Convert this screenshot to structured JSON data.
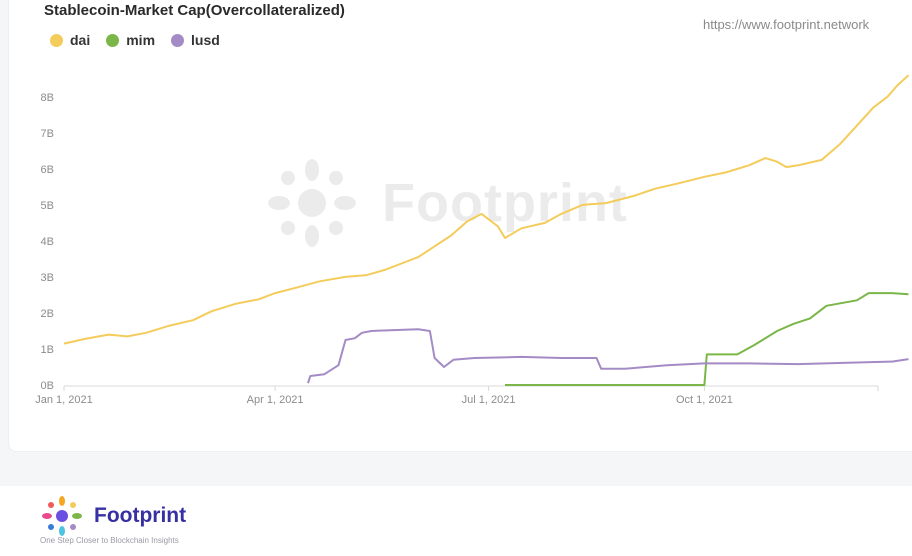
{
  "header": {
    "title": "Stablecoin-Market Cap(Overcollateralized)",
    "source_url": "https://www.footprint.network"
  },
  "watermark": {
    "text": "Footprint"
  },
  "footer": {
    "brand": "Footprint",
    "tagline": "One Step Closer to Blockchain Insights"
  },
  "chart_data": {
    "type": "line",
    "title": "Stablecoin-Market Cap(Overcollateralized)",
    "xlabel": "",
    "ylabel": "",
    "x_axis": {
      "type": "date",
      "min": "2021-01-01",
      "max": "2021-12-14",
      "ticks": [
        "2021-01-01",
        "2021-04-01",
        "2021-07-01",
        "2021-10-01"
      ],
      "tick_labels": [
        "Jan 1, 2021",
        "Apr 1, 2021",
        "Jul 1, 2021",
        "Oct 1, 2021"
      ]
    },
    "y_axis": {
      "min": 0,
      "max": 8.8,
      "ticks": [
        0,
        1,
        2,
        3,
        4,
        5,
        6,
        7,
        8
      ],
      "tick_labels": [
        "0B",
        "1B",
        "2B",
        "3B",
        "4B",
        "5B",
        "6B",
        "7B",
        "8B"
      ],
      "unit": "B"
    },
    "grid": false,
    "legend": "top-left",
    "series": [
      {
        "name": "dai",
        "color": "#f4cc5b",
        "points": [
          [
            "2021-01-01",
            1.15
          ],
          [
            "2021-01-10",
            1.28
          ],
          [
            "2021-01-20",
            1.4
          ],
          [
            "2021-01-28",
            1.35
          ],
          [
            "2021-02-05",
            1.45
          ],
          [
            "2021-02-15",
            1.65
          ],
          [
            "2021-02-25",
            1.8
          ],
          [
            "2021-03-05",
            2.05
          ],
          [
            "2021-03-15",
            2.25
          ],
          [
            "2021-03-25",
            2.38
          ],
          [
            "2021-04-01",
            2.55
          ],
          [
            "2021-04-10",
            2.7
          ],
          [
            "2021-04-20",
            2.88
          ],
          [
            "2021-05-01",
            3.0
          ],
          [
            "2021-05-10",
            3.05
          ],
          [
            "2021-05-18",
            3.2
          ],
          [
            "2021-05-26",
            3.4
          ],
          [
            "2021-06-01",
            3.55
          ],
          [
            "2021-06-08",
            3.85
          ],
          [
            "2021-06-15",
            4.15
          ],
          [
            "2021-06-22",
            4.55
          ],
          [
            "2021-06-28",
            4.75
          ],
          [
            "2021-07-05",
            4.4
          ],
          [
            "2021-07-08",
            4.08
          ],
          [
            "2021-07-15",
            4.35
          ],
          [
            "2021-07-25",
            4.5
          ],
          [
            "2021-08-01",
            4.75
          ],
          [
            "2021-08-10",
            5.0
          ],
          [
            "2021-08-20",
            5.05
          ],
          [
            "2021-09-01",
            5.25
          ],
          [
            "2021-09-10",
            5.45
          ],
          [
            "2021-09-20",
            5.6
          ],
          [
            "2021-10-01",
            5.78
          ],
          [
            "2021-10-10",
            5.9
          ],
          [
            "2021-10-20",
            6.1
          ],
          [
            "2021-10-27",
            6.3
          ],
          [
            "2021-11-01",
            6.2
          ],
          [
            "2021-11-05",
            6.05
          ],
          [
            "2021-11-10",
            6.1
          ],
          [
            "2021-11-20",
            6.25
          ],
          [
            "2021-11-28",
            6.7
          ],
          [
            "2021-12-05",
            7.2
          ],
          [
            "2021-12-12",
            7.7
          ],
          [
            "2021-12-18",
            8.0
          ],
          [
            "2021-12-22",
            8.3
          ],
          [
            "2021-12-27",
            8.6
          ]
        ]
      },
      {
        "name": "mim",
        "color": "#7ab648",
        "points": [
          [
            "2021-07-08",
            0.0
          ],
          [
            "2021-10-01",
            0.0
          ],
          [
            "2021-10-02",
            0.85
          ],
          [
            "2021-10-15",
            0.85
          ],
          [
            "2021-10-22",
            1.1
          ],
          [
            "2021-11-01",
            1.5
          ],
          [
            "2021-11-08",
            1.7
          ],
          [
            "2021-11-15",
            1.85
          ],
          [
            "2021-11-22",
            2.2
          ],
          [
            "2021-12-05",
            2.35
          ],
          [
            "2021-12-10",
            2.55
          ],
          [
            "2021-12-20",
            2.55
          ],
          [
            "2021-12-27",
            2.52
          ]
        ]
      },
      {
        "name": "lusd",
        "color": "#a48bc6",
        "points": [
          [
            "2021-04-15",
            0.05
          ],
          [
            "2021-04-16",
            0.25
          ],
          [
            "2021-04-22",
            0.3
          ],
          [
            "2021-04-28",
            0.55
          ],
          [
            "2021-05-01",
            1.25
          ],
          [
            "2021-05-05",
            1.3
          ],
          [
            "2021-05-08",
            1.45
          ],
          [
            "2021-05-12",
            1.5
          ],
          [
            "2021-05-20",
            1.52
          ],
          [
            "2021-06-01",
            1.55
          ],
          [
            "2021-06-06",
            1.5
          ],
          [
            "2021-06-08",
            0.75
          ],
          [
            "2021-06-12",
            0.5
          ],
          [
            "2021-06-16",
            0.7
          ],
          [
            "2021-06-25",
            0.75
          ],
          [
            "2021-07-15",
            0.78
          ],
          [
            "2021-08-01",
            0.75
          ],
          [
            "2021-08-16",
            0.75
          ],
          [
            "2021-08-18",
            0.45
          ],
          [
            "2021-08-28",
            0.45
          ],
          [
            "2021-09-15",
            0.55
          ],
          [
            "2021-10-01",
            0.6
          ],
          [
            "2021-10-20",
            0.6
          ],
          [
            "2021-11-10",
            0.58
          ],
          [
            "2021-12-01",
            0.62
          ],
          [
            "2021-12-20",
            0.65
          ],
          [
            "2021-12-27",
            0.72
          ]
        ]
      }
    ]
  }
}
